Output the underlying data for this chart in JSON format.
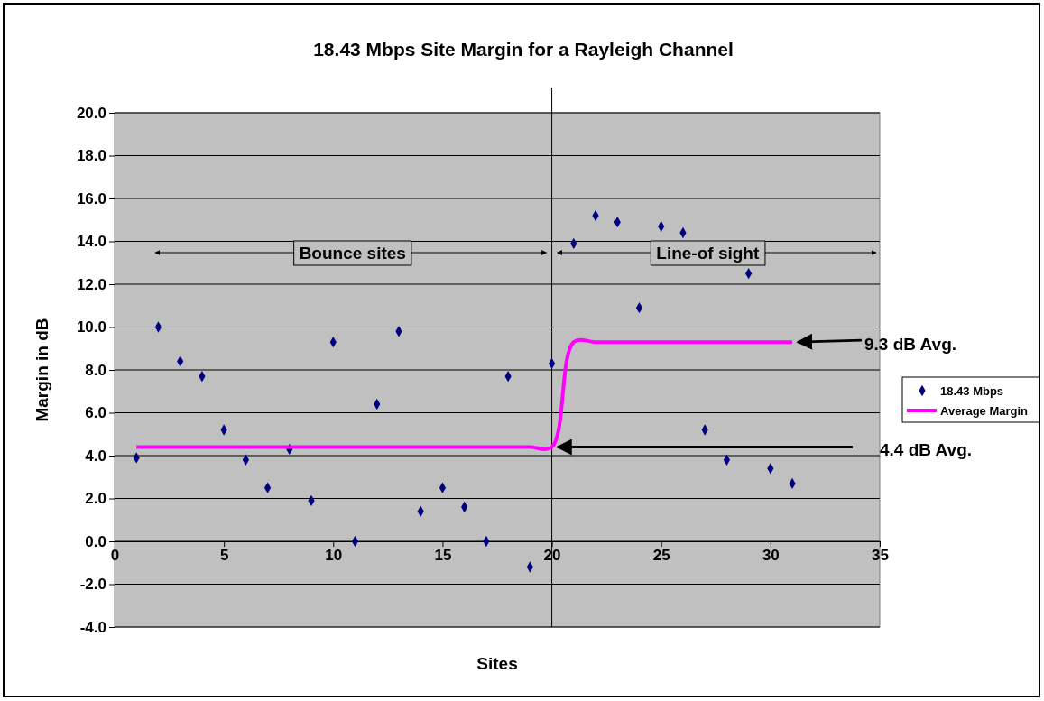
{
  "chart_data": {
    "type": "scatter",
    "title": "18.43 Mbps Site Margin for a Rayleigh Channel",
    "xlabel": "Sites",
    "ylabel": "Margin in dB",
    "xlim": [
      0,
      35
    ],
    "xticks": [
      0,
      5,
      10,
      15,
      20,
      25,
      30,
      35
    ],
    "ylim": [
      -4,
      20
    ],
    "yticks": [
      {
        "value": -4,
        "label": "-4.0"
      },
      {
        "value": -2,
        "label": "-2.0"
      },
      {
        "value": 0,
        "label": "0.0"
      },
      {
        "value": 2,
        "label": "2.0"
      },
      {
        "value": 4,
        "label": "4.0"
      },
      {
        "value": 6,
        "label": "6.0"
      },
      {
        "value": 8,
        "label": "8.0"
      },
      {
        "value": 10,
        "label": "10.0"
      },
      {
        "value": 12,
        "label": "12.0"
      },
      {
        "value": 14,
        "label": "14.0"
      },
      {
        "value": 16,
        "label": "16.0"
      },
      {
        "value": 18,
        "label": "18.0"
      },
      {
        "value": 20,
        "label": "20.0"
      }
    ],
    "grid": "y",
    "legend": "right",
    "series": [
      {
        "name": "18.43 Mbps",
        "marker": "diamond",
        "color": "#000080",
        "x": [
          1,
          2,
          3,
          4,
          5,
          6,
          7,
          8,
          9,
          10,
          11,
          12,
          13,
          14,
          15,
          16,
          17,
          18,
          19,
          20,
          21,
          22,
          23,
          24,
          25,
          26,
          27,
          28,
          29,
          30,
          31
        ],
        "values": [
          3.9,
          10.0,
          8.4,
          7.7,
          5.2,
          3.8,
          2.5,
          4.3,
          1.9,
          9.3,
          0.0,
          6.4,
          9.8,
          1.4,
          2.5,
          1.6,
          0.0,
          7.7,
          -1.2,
          8.3,
          13.9,
          15.2,
          14.9,
          10.9,
          14.7,
          14.4,
          5.2,
          3.8,
          12.5,
          3.4,
          2.7
        ]
      },
      {
        "name": "Average Margin",
        "type": "line",
        "marker": "none",
        "line_style": "solid",
        "color": "#ff00ff",
        "x": [
          1,
          2,
          3,
          4,
          5,
          6,
          7,
          8,
          9,
          10,
          11,
          12,
          13,
          14,
          15,
          16,
          17,
          18,
          19,
          20,
          21,
          22,
          23,
          24,
          25,
          26,
          27,
          28,
          29,
          30,
          31
        ],
        "values": [
          4.4,
          4.4,
          4.4,
          4.4,
          4.4,
          4.4,
          4.4,
          4.4,
          4.4,
          4.4,
          4.4,
          4.4,
          4.4,
          4.4,
          4.4,
          4.4,
          4.4,
          4.4,
          4.4,
          4.4,
          9.3,
          9.3,
          9.3,
          9.3,
          9.3,
          9.3,
          9.3,
          9.3,
          9.3,
          9.3,
          9.3
        ]
      }
    ],
    "ref_lines": [
      {
        "axis": "x",
        "value": 20,
        "color": "#000000",
        "line_style": "solid"
      }
    ],
    "annotations": [
      "Bounce sites",
      "Line-of sight",
      {
        "text": "9.3 dB Avg.",
        "x": 31,
        "y": 9.3
      },
      "4.4 dB Avg."
    ]
  }
}
